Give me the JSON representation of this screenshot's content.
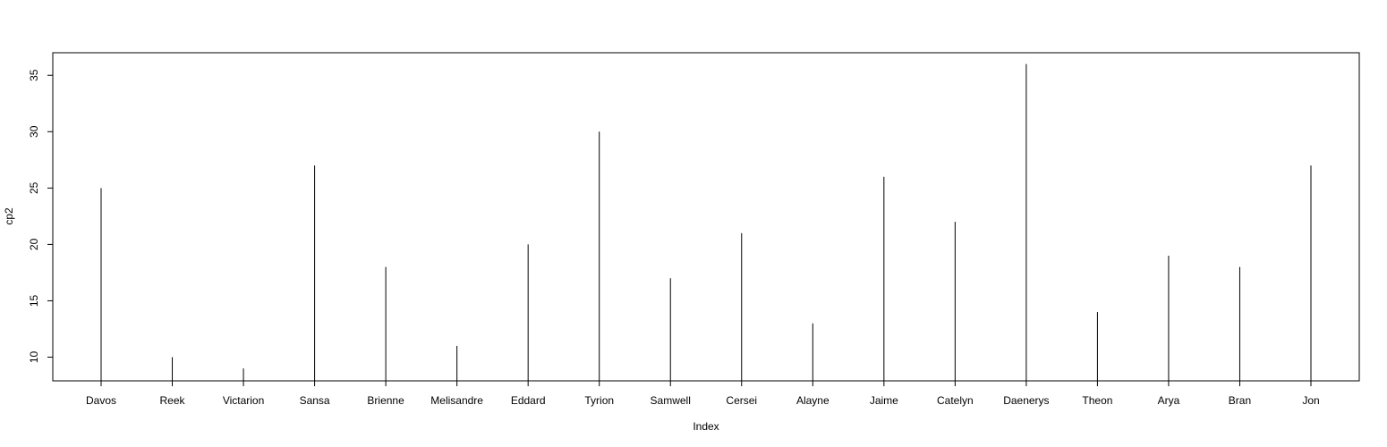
{
  "chart_data": {
    "type": "bar",
    "subtype": "histogram-style vertical lines (R plot type='h')",
    "title": "",
    "xlabel": "Index",
    "ylabel": "cp2",
    "categories": [
      "Davos",
      "Reek",
      "Victarion",
      "Sansa",
      "Brienne",
      "Melisandre",
      "Eddard",
      "Tyrion",
      "Samwell",
      "Cersei",
      "Alayne",
      "Jaime",
      "Catelyn",
      "Daenerys",
      "Theon",
      "Arya",
      "Bran",
      "Jon"
    ],
    "values": [
      25,
      10,
      9,
      27,
      18,
      11,
      20,
      30,
      17,
      21,
      13,
      26,
      22,
      36,
      14,
      19,
      18,
      27
    ],
    "yticks": [
      10,
      15,
      20,
      25,
      30,
      35
    ],
    "ylim": [
      7.9,
      37.0
    ],
    "grid": false,
    "legend": "none",
    "line_color": "#000000"
  }
}
